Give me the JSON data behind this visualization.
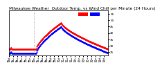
{
  "title": "Milwaukee Weather  Outdoor Temp. vs Wind Chill per Minute (24 Hours)",
  "bg_color": "#ffffff",
  "temp_color": "#ff0000",
  "windchill_color": "#0000ff",
  "legend_temp_color": "#ff0000",
  "legend_wc_color": "#0000ff",
  "ylim": [
    22,
    58
  ],
  "yticks": [
    25,
    30,
    35,
    40,
    45,
    50,
    55
  ],
  "vline_x": 360,
  "xmax": 1435,
  "title_fontsize": 4.2,
  "tick_fontsize": 3.0
}
